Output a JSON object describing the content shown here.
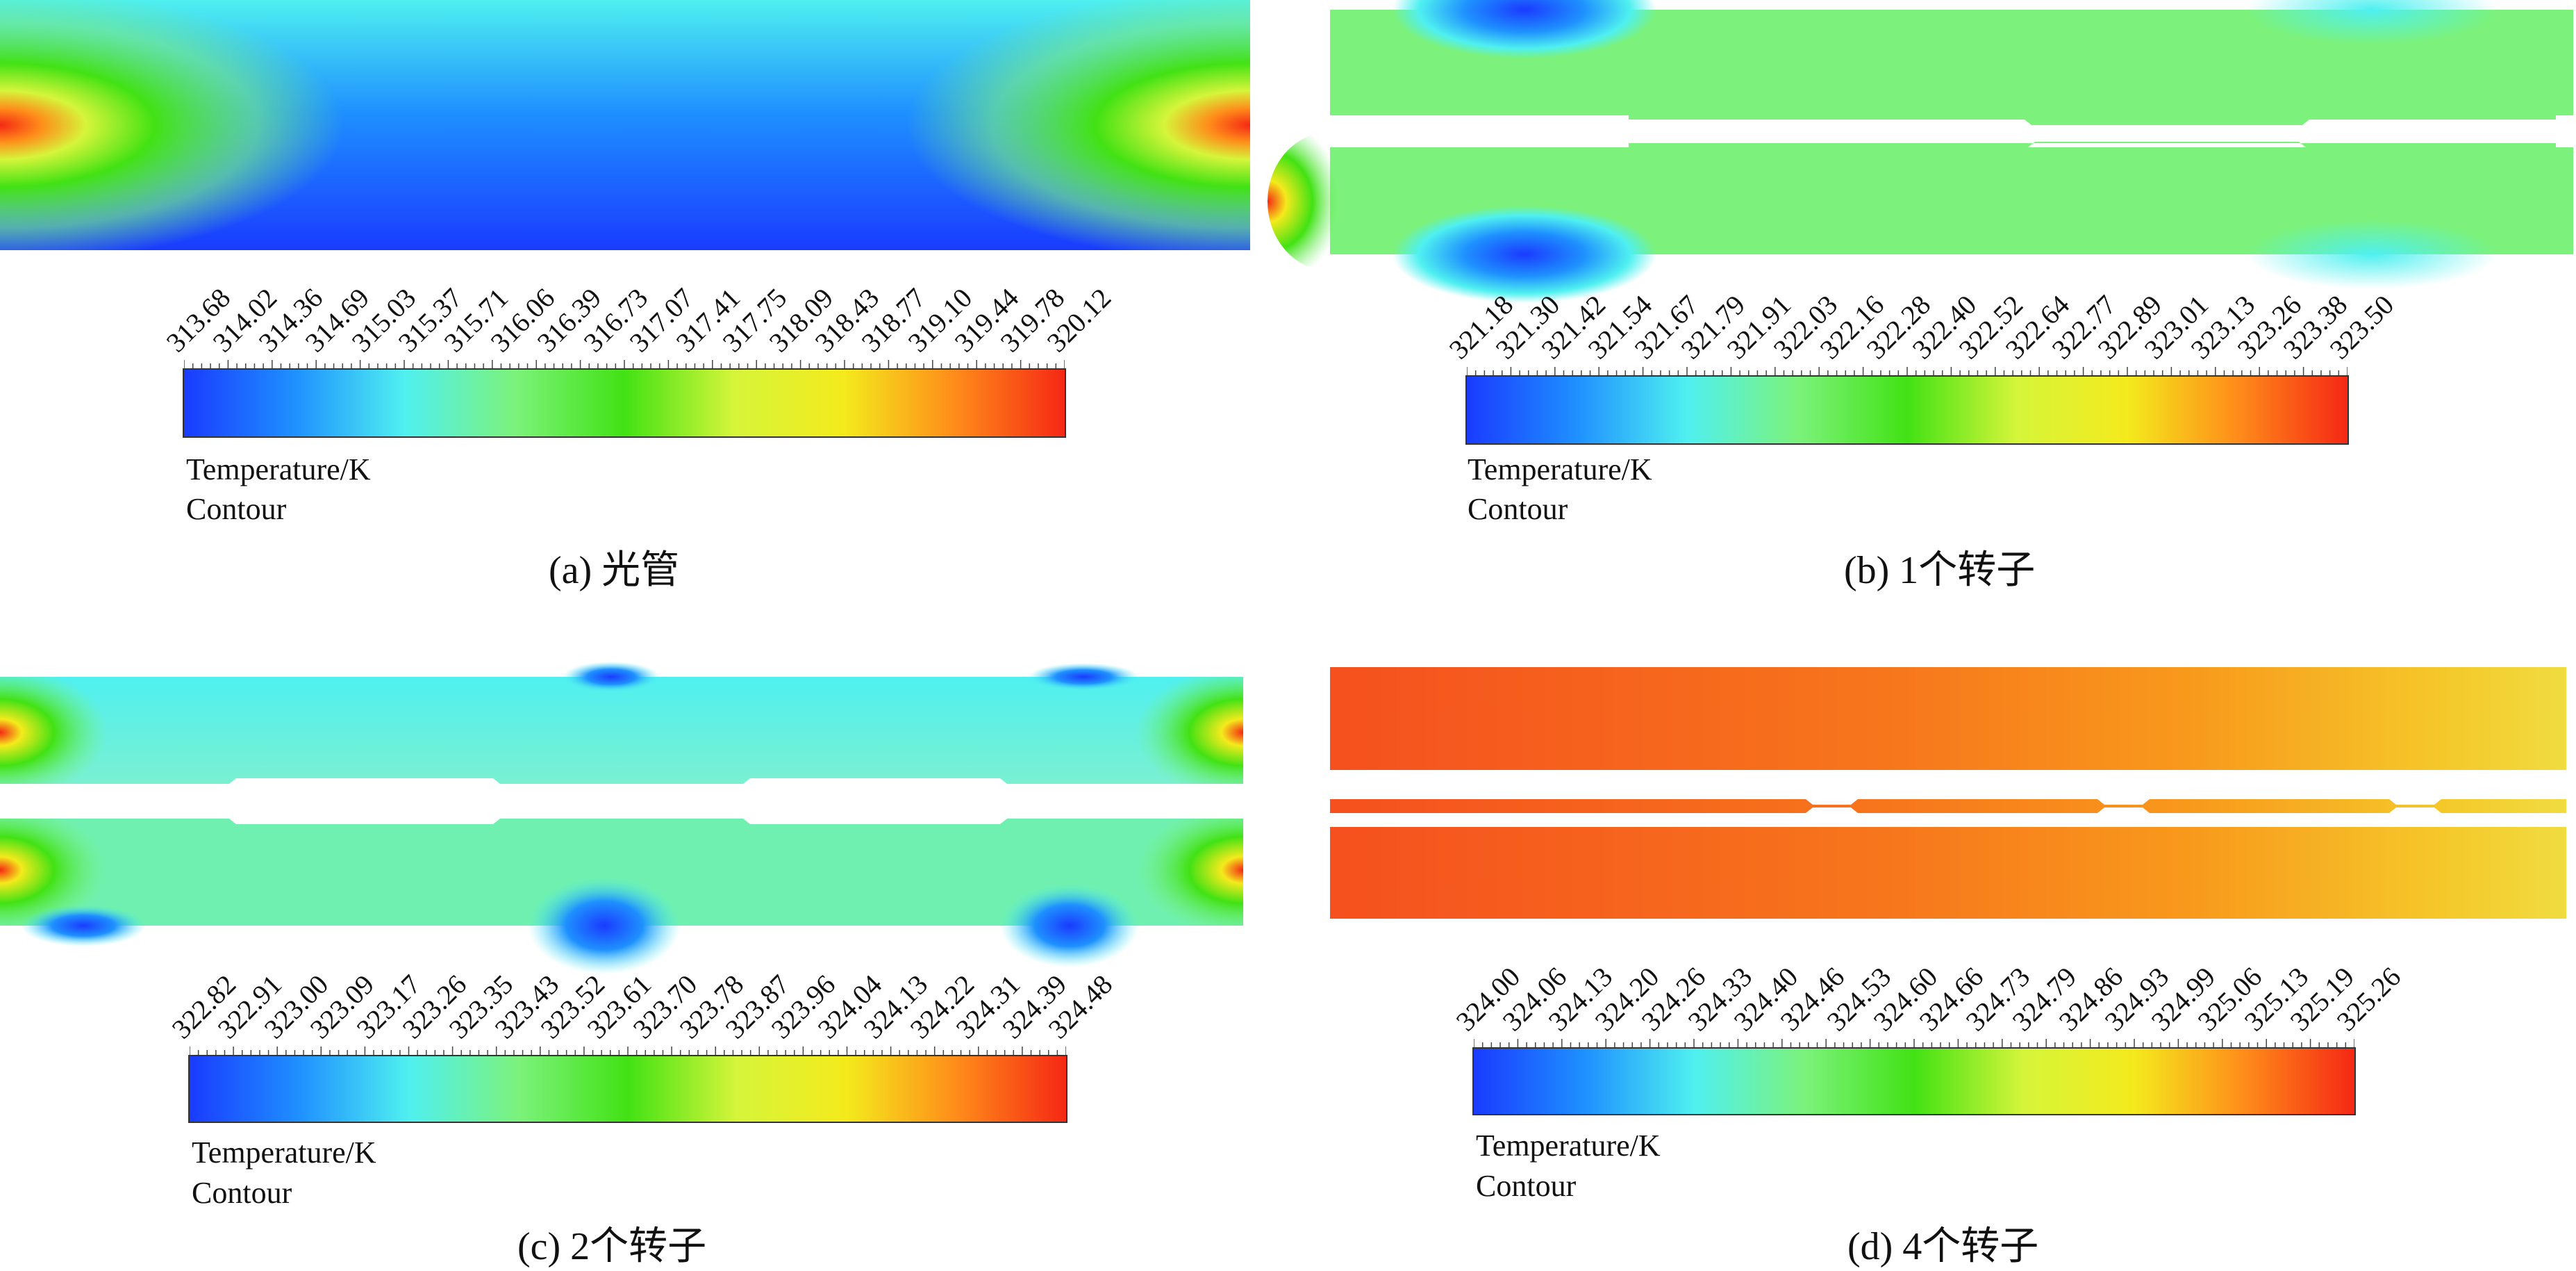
{
  "colors": {
    "scale": [
      "#1a3bff",
      "#1e90ff",
      "#4ff0f0",
      "#7cf27c",
      "#42e214",
      "#d6f53a",
      "#f4ea1c",
      "#ff8c1a",
      "#f52814"
    ]
  },
  "panels": [
    {
      "id": "a",
      "caption": "(a) 光管",
      "legend_title": "Temperature/K",
      "legend_subtitle": "Contour",
      "rotors": 0,
      "min": 313.68,
      "max": 320.12,
      "ticks": [
        "313.68",
        "314.02",
        "314.36",
        "314.69",
        "315.03",
        "315.37",
        "315.71",
        "316.06",
        "316.39",
        "316.73",
        "317.07",
        "317.41",
        "317.75",
        "318.09",
        "318.43",
        "318.77",
        "319.10",
        "319.44",
        "319.78",
        "320.12"
      ]
    },
    {
      "id": "b",
      "caption": "(b) 1个转子",
      "legend_title": "Temperature/K",
      "legend_subtitle": "Contour",
      "rotors": 1,
      "min": 321.18,
      "max": 323.5,
      "ticks": [
        "321.18",
        "321.30",
        "321.42",
        "321.54",
        "321.67",
        "321.79",
        "321.91",
        "322.03",
        "322.16",
        "322.28",
        "322.40",
        "322.52",
        "322.64",
        "322.77",
        "322.89",
        "323.01",
        "323.13",
        "323.26",
        "323.38",
        "323.50"
      ]
    },
    {
      "id": "c",
      "caption": "(c) 2个转子",
      "legend_title": "Temperature/K",
      "legend_subtitle": "Contour",
      "rotors": 2,
      "min": 322.82,
      "max": 324.48,
      "ticks": [
        "322.82",
        "322.91",
        "323.00",
        "323.09",
        "323.17",
        "323.26",
        "323.35",
        "323.43",
        "323.52",
        "323.61",
        "323.70",
        "323.78",
        "323.87",
        "323.96",
        "324.04",
        "324.13",
        "324.22",
        "324.31",
        "324.39",
        "324.48"
      ]
    },
    {
      "id": "d",
      "caption": "(d) 4个转子",
      "legend_title": "Temperature/K",
      "legend_subtitle": "Contour",
      "rotors": 4,
      "min": 324.0,
      "max": 325.26,
      "ticks": [
        "324.00",
        "324.06",
        "324.13",
        "324.20",
        "324.26",
        "324.33",
        "324.40",
        "324.46",
        "324.53",
        "324.60",
        "324.66",
        "324.73",
        "324.79",
        "324.86",
        "324.93",
        "324.99",
        "325.06",
        "325.13",
        "325.19",
        "325.26"
      ]
    }
  ]
}
